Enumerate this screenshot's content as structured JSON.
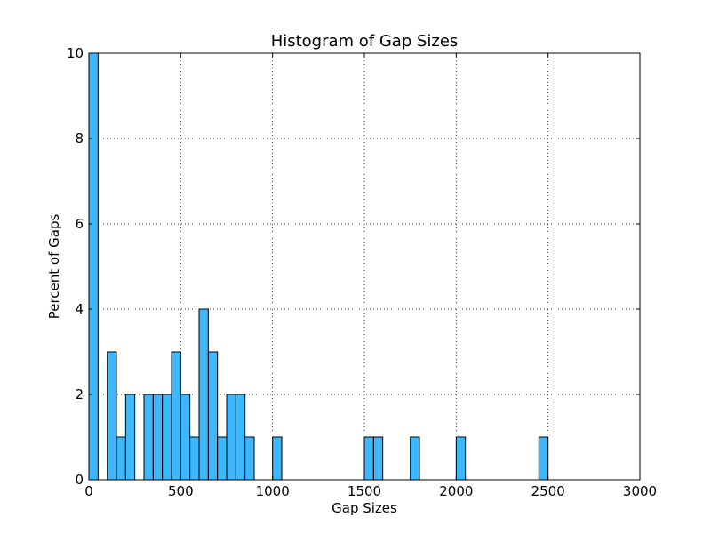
{
  "chart_data": {
    "type": "bar",
    "title": "Histogram of Gap Sizes",
    "xlabel": "Gap Sizes",
    "ylabel": "Percent of Gaps",
    "xlim": [
      0,
      3000
    ],
    "ylim": [
      0,
      10
    ],
    "grid": true,
    "bar_color": "#3db8ff",
    "edge_color": "#000000",
    "bin_width": 50,
    "x_ticks": [
      0,
      500,
      1000,
      1500,
      2000,
      2500,
      3000
    ],
    "y_ticks": [
      0,
      2,
      4,
      6,
      8,
      10
    ],
    "bins": [
      {
        "x": 0,
        "value": 10
      },
      {
        "x": 100,
        "value": 3
      },
      {
        "x": 150,
        "value": 1
      },
      {
        "x": 200,
        "value": 2
      },
      {
        "x": 300,
        "value": 2
      },
      {
        "x": 350,
        "value": 2
      },
      {
        "x": 400,
        "value": 2
      },
      {
        "x": 450,
        "value": 3
      },
      {
        "x": 500,
        "value": 2
      },
      {
        "x": 550,
        "value": 1
      },
      {
        "x": 600,
        "value": 4
      },
      {
        "x": 650,
        "value": 3
      },
      {
        "x": 700,
        "value": 1
      },
      {
        "x": 750,
        "value": 2
      },
      {
        "x": 800,
        "value": 2
      },
      {
        "x": 850,
        "value": 1
      },
      {
        "x": 1000,
        "value": 1
      },
      {
        "x": 1500,
        "value": 1
      },
      {
        "x": 1550,
        "value": 1
      },
      {
        "x": 1750,
        "value": 1
      },
      {
        "x": 2000,
        "value": 1
      },
      {
        "x": 2450,
        "value": 1
      }
    ]
  }
}
